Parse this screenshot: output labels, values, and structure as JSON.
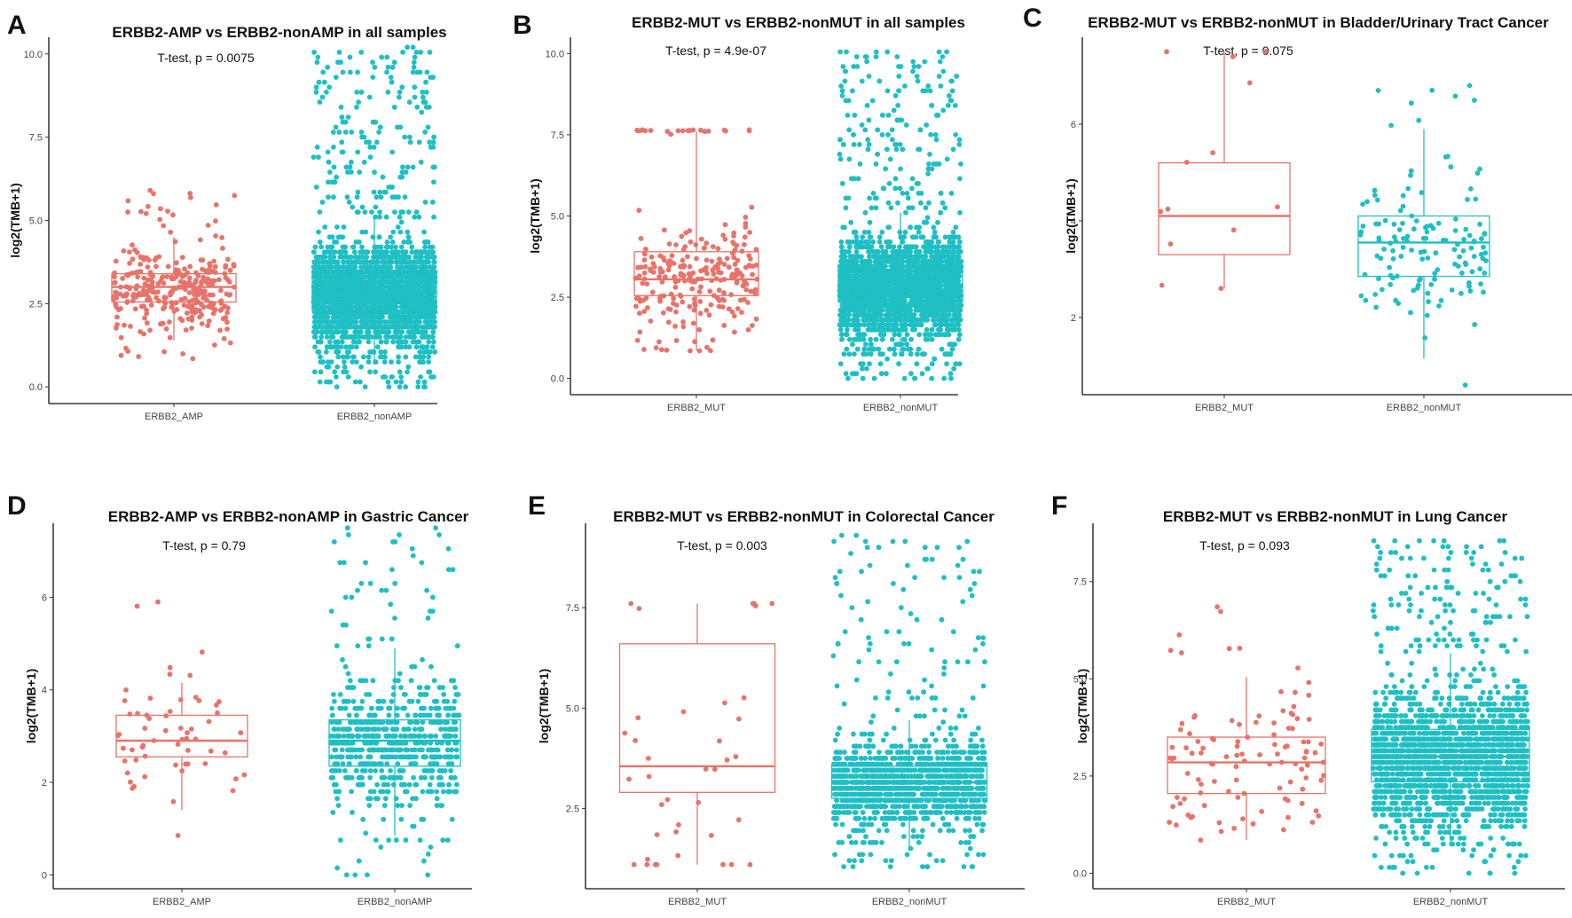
{
  "colors": {
    "group1": "#E8736A",
    "group2": "#1FBFC4",
    "axis": "#111111"
  },
  "chart_data": [
    {
      "letter": "A",
      "type": "boxplot",
      "title": "ERBB2-AMP vs ERBB2-nonAMP in all samples",
      "test_label": "T-test, p = 0.0075",
      "ylabel": "log2(TMB+1)",
      "ylim": [
        -0.5,
        10.5
      ],
      "yticks": [
        0.0,
        2.5,
        5.0,
        7.5,
        10.0
      ],
      "yticklabels": [
        "0.0",
        "2.5",
        "5.0",
        "7.5",
        "10.0"
      ],
      "categories": [
        "ERBB2_AMP",
        "ERBB2_nonAMP"
      ],
      "boxes": [
        {
          "q1": 2.55,
          "median": 3.0,
          "q3": 3.4,
          "lower": 1.4,
          "upper": 4.5,
          "min": 0.85,
          "max": 5.9,
          "n_points": 320
        },
        {
          "q1": 2.3,
          "median": 2.8,
          "q3": 3.4,
          "lower": 0.7,
          "upper": 5.05,
          "min": 0.0,
          "max": 10.15,
          "n_points": 3000
        }
      ]
    },
    {
      "letter": "B",
      "type": "boxplot",
      "title": "ERBB2-MUT vs ERBB2-nonMUT in all samples",
      "test_label": "T-test, p = 4.9e-07",
      "ylabel": "log2(TMB+1)",
      "ylim": [
        -0.5,
        10.5
      ],
      "yticks": [
        0.0,
        2.5,
        5.0,
        7.5,
        10.0
      ],
      "yticklabels": [
        "0.0",
        "2.5",
        "5.0",
        "7.5",
        "10.0"
      ],
      "categories": [
        "ERBB2_MUT",
        "ERBB2_nonMUT"
      ],
      "boxes": [
        {
          "q1": 2.55,
          "median": 3.05,
          "q3": 3.9,
          "lower": 0.85,
          "upper": 7.6,
          "min": 0.85,
          "max": 7.65,
          "n_points": 260
        },
        {
          "q1": 2.35,
          "median": 2.85,
          "q3": 3.45,
          "lower": 0.7,
          "upper": 5.1,
          "min": 0.0,
          "max": 10.1,
          "n_points": 3000
        }
      ]
    },
    {
      "letter": "C",
      "type": "boxplot",
      "title": "ERBB2-MUT vs ERBB2-nonMUT in Bladder/Urinary Tract Cancer",
      "test_label": "T-test, p = 0.075",
      "ylabel": "log2(TMB+1)",
      "ylim": [
        0.4,
        7.8
      ],
      "yticks": [
        2,
        4,
        6
      ],
      "yticklabels": [
        "2",
        "4",
        "6"
      ],
      "categories": [
        "ERBB2_MUT",
        "ERBB2_nonMUT"
      ],
      "boxes": [
        {
          "q1": 3.3,
          "median": 4.1,
          "q3": 5.2,
          "lower": 2.6,
          "upper": 7.5,
          "min": 2.6,
          "max": 7.5,
          "n_points": 13
        },
        {
          "q1": 2.85,
          "median": 3.55,
          "q3": 4.1,
          "lower": 1.15,
          "upper": 5.9,
          "min": 0.6,
          "max": 6.8,
          "n_points": 140
        }
      ]
    },
    {
      "letter": "D",
      "type": "boxplot",
      "title": "ERBB2-AMP vs ERBB2-nonAMP in Gastric Cancer",
      "test_label": "T-test, p = 0.79",
      "ylabel": "log2(TMB+1)",
      "ylim": [
        -0.3,
        7.6
      ],
      "yticks": [
        0,
        2,
        4,
        6
      ],
      "yticklabels": [
        "0",
        "2",
        "4",
        "6"
      ],
      "categories": [
        "ERBB2_AMP",
        "ERBB2_nonAMP"
      ],
      "boxes": [
        {
          "q1": 2.55,
          "median": 2.9,
          "q3": 3.45,
          "lower": 1.4,
          "upper": 4.15,
          "min": 0.85,
          "max": 5.9,
          "n_points": 60
        },
        {
          "q1": 2.35,
          "median": 2.9,
          "q3": 3.35,
          "lower": 0.85,
          "upper": 4.9,
          "min": 0.0,
          "max": 7.45,
          "n_points": 700
        }
      ]
    },
    {
      "letter": "E",
      "type": "boxplot",
      "title": "ERBB2-MUT vs ERBB2-nonMUT in Colorectal Cancer",
      "test_label": "T-test, p = 0.003",
      "ylabel": "log2(TMB+1)",
      "ylim": [
        0.5,
        9.6
      ],
      "yticks": [
        2.5,
        5.0,
        7.5
      ],
      "yticklabels": [
        "2.5",
        "5.0",
        "7.5"
      ],
      "categories": [
        "ERBB2_MUT",
        "ERBB2_nonMUT"
      ],
      "boxes": [
        {
          "q1": 2.9,
          "median": 3.55,
          "q3": 6.6,
          "lower": 1.1,
          "upper": 7.6,
          "min": 1.1,
          "max": 7.6,
          "n_points": 38
        },
        {
          "q1": 2.75,
          "median": 3.15,
          "q3": 3.55,
          "lower": 1.5,
          "upper": 4.7,
          "min": 1.0,
          "max": 9.25,
          "n_points": 1400
        }
      ]
    },
    {
      "letter": "F",
      "type": "boxplot",
      "title": "ERBB2-MUT vs ERBB2-nonMUT in Lung Cancer",
      "test_label": "T-test, p = 0.093",
      "ylabel": "log2(TMB+1)",
      "ylim": [
        -0.4,
        9.0
      ],
      "yticks": [
        0.0,
        2.5,
        5.0,
        7.5
      ],
      "yticklabels": [
        "0.0",
        "2.5",
        "5.0",
        "7.5"
      ],
      "categories": [
        "ERBB2_MUT",
        "ERBB2_nonMUT"
      ],
      "boxes": [
        {
          "q1": 2.05,
          "median": 2.85,
          "q3": 3.5,
          "lower": 0.85,
          "upper": 5.05,
          "min": 0.85,
          "max": 6.85,
          "n_points": 110
        },
        {
          "q1": 2.35,
          "median": 3.0,
          "q3": 3.7,
          "lower": 0.7,
          "upper": 5.65,
          "min": 0.0,
          "max": 8.6,
          "n_points": 2200
        }
      ]
    }
  ]
}
